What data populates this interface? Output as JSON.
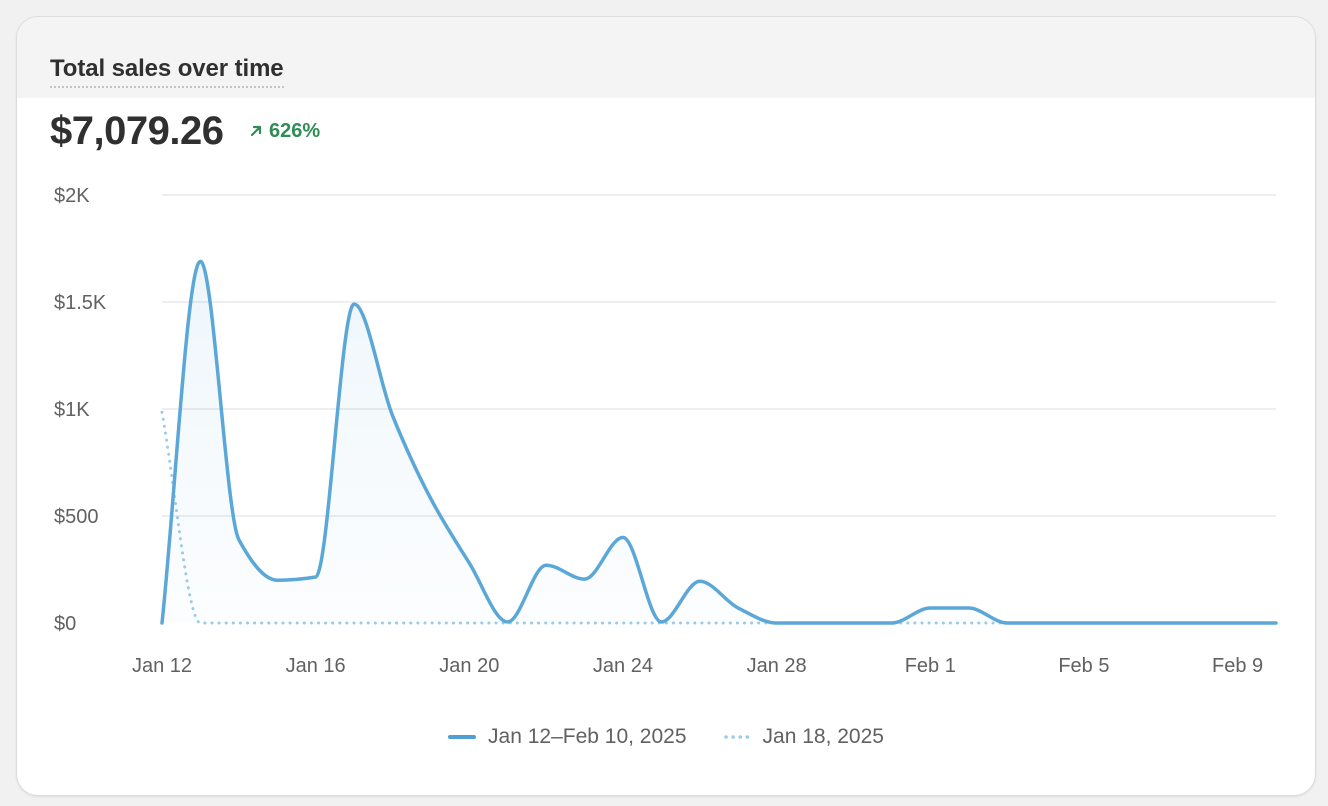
{
  "card": {
    "title": "Total sales over time",
    "total": "$7,079.26",
    "change": "626%",
    "change_direction": "up",
    "change_color": "#2f8d55"
  },
  "chart_data": {
    "type": "line",
    "title": "Total sales over time",
    "xlabel": "",
    "ylabel": "",
    "ylim": [
      0,
      2000
    ],
    "y_ticks": [
      "$0",
      "$500",
      "$1K",
      "$1.5K",
      "$2K"
    ],
    "y_tick_values": [
      0,
      500,
      1000,
      1500,
      2000
    ],
    "x_ticks": [
      "Jan 12",
      "Jan 16",
      "Jan 20",
      "Jan 24",
      "Jan 28",
      "Feb 1",
      "Feb 5",
      "Feb 9"
    ],
    "x_tick_day_index": [
      0,
      4,
      8,
      12,
      16,
      20,
      24,
      28
    ],
    "grid": "horizontal",
    "legend_placement": "bottom-center",
    "series": [
      {
        "name": "Jan 12–Feb 10, 2025",
        "style": "solid",
        "color": "#5aa7d8",
        "fill": true,
        "x": [
          "Jan 12",
          "Jan 13",
          "Jan 14",
          "Jan 15",
          "Jan 16",
          "Jan 17",
          "Jan 18",
          "Jan 19",
          "Jan 20",
          "Jan 21",
          "Jan 22",
          "Jan 23",
          "Jan 24",
          "Jan 25",
          "Jan 26",
          "Jan 27",
          "Jan 28",
          "Jan 29",
          "Jan 30",
          "Jan 31",
          "Feb 1",
          "Feb 2",
          "Feb 3",
          "Feb 4",
          "Feb 5",
          "Feb 6",
          "Feb 7",
          "Feb 8",
          "Feb 9",
          "Feb 10"
        ],
        "values": [
          0,
          1690,
          390,
          200,
          215,
          1490,
          970,
          580,
          280,
          5,
          270,
          205,
          400,
          5,
          195,
          70,
          0,
          0,
          0,
          0,
          70,
          70,
          0,
          0,
          0,
          0,
          0,
          0,
          0,
          0
        ]
      },
      {
        "name": "Jan 18, 2025",
        "style": "dotted",
        "color": "#9ccbe8",
        "fill": false,
        "x": [
          "Jan 12",
          "Jan 13",
          "Jan 14",
          "Jan 15",
          "Jan 16",
          "Jan 17",
          "Jan 18",
          "Jan 19",
          "Jan 20",
          "Jan 21",
          "Jan 22",
          "Jan 23",
          "Jan 24",
          "Jan 25",
          "Jan 26",
          "Jan 27",
          "Jan 28",
          "Jan 29",
          "Jan 30",
          "Jan 31",
          "Feb 1",
          "Feb 2",
          "Feb 3",
          "Feb 4",
          "Feb 5",
          "Feb 6",
          "Feb 7",
          "Feb 8",
          "Feb 9",
          "Feb 10"
        ],
        "values": [
          985,
          0,
          0,
          0,
          0,
          0,
          0,
          0,
          0,
          0,
          0,
          0,
          0,
          0,
          0,
          0,
          0,
          0,
          0,
          0,
          0,
          0,
          0,
          0,
          0,
          0,
          0,
          0,
          0,
          0
        ]
      }
    ]
  }
}
